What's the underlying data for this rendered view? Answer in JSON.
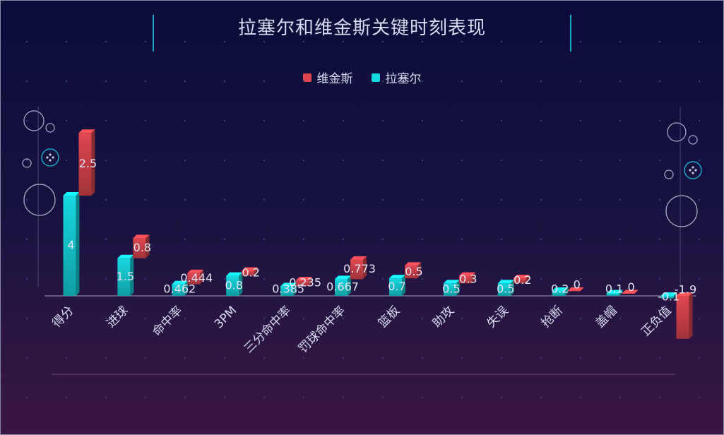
{
  "colors": {
    "background_top": "#0b0c3a",
    "background_bottom": "#3a1640",
    "series_weijinsi": "#e0474f",
    "series_lasaier": "#16d8e0",
    "text": "#d8dcf2"
  },
  "chart_data": {
    "type": "bar",
    "title": "拉塞尔和维金斯关键时刻表现",
    "legend_position": "top-center",
    "grid": false,
    "categories": [
      "得分",
      "进球",
      "命中率",
      "3PM",
      "三分命中率",
      "罚球命中率",
      "篮板",
      "助攻",
      "失误",
      "抢断",
      "盖帽",
      "正负值"
    ],
    "series": [
      {
        "name": "拉塞尔",
        "color": "#16d8e0",
        "values": [
          4,
          1.5,
          0.462,
          0.8,
          0.385,
          0.667,
          0.7,
          0.5,
          0.5,
          0.2,
          0.1,
          -0.1
        ]
      },
      {
        "name": "维金斯",
        "color": "#e0474f",
        "values": [
          2.5,
          0.8,
          0.444,
          0.2,
          0.235,
          0.773,
          0.5,
          0.3,
          0.2,
          0,
          0,
          -1.9
        ]
      }
    ],
    "legend_order": [
      "维金斯",
      "拉塞尔"
    ],
    "stacked": true
  }
}
